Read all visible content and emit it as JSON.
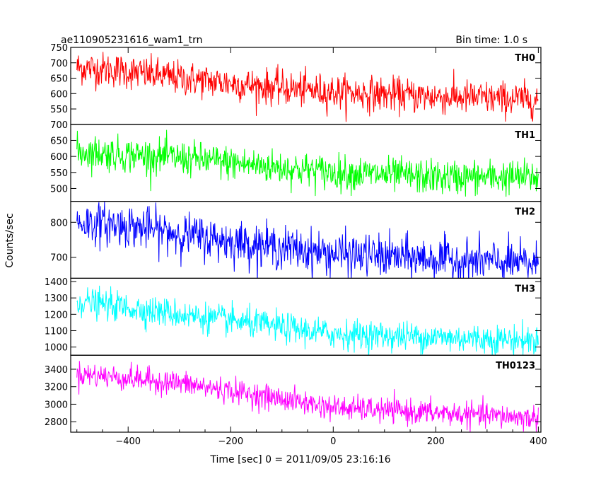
{
  "header": {
    "title": "ae110905231616_wam1_trn",
    "bin_time": "Bin time: 1.0 s"
  },
  "chart_data": {
    "type": "line",
    "xlabel": "Time [sec] 0 = 2011/09/05 23:16:16",
    "ylabel": "Counts/sec",
    "xlim": [
      -512,
      405
    ],
    "x_ticks": [
      -400,
      -200,
      0,
      200,
      400
    ],
    "x_tick_labels": [
      "−400",
      "−200",
      "0",
      "200",
      "400"
    ],
    "x_range": [
      -500,
      400
    ],
    "bin": 1.0,
    "panels": [
      {
        "name": "TH0",
        "color": "#ff0000",
        "ylim": [
          500,
          750
        ],
        "ticks": [
          550,
          600,
          650,
          700,
          750
        ],
        "trend": {
          "x": [
            -500,
            -420,
            -300,
            -150,
            0,
            200,
            400
          ],
          "y": [
            685,
            675,
            650,
            625,
            605,
            590,
            580
          ]
        },
        "noise": 28
      },
      {
        "name": "TH1",
        "color": "#00ff00",
        "ylim": [
          460,
          700
        ],
        "ticks": [
          500,
          550,
          600,
          650,
          700
        ],
        "trend": {
          "x": [
            -500,
            -300,
            -100,
            0,
            200,
            400
          ],
          "y": [
            615,
            595,
            565,
            550,
            535,
            535
          ]
        },
        "noise": 27
      },
      {
        "name": "TH2",
        "color": "#0000ff",
        "ylim": [
          640,
          860
        ],
        "ticks": [
          700,
          800
        ],
        "trend": {
          "x": [
            -500,
            -400,
            -200,
            0,
            200,
            400
          ],
          "y": [
            800,
            790,
            745,
            710,
            695,
            680
          ]
        },
        "noise": 30
      },
      {
        "name": "TH3",
        "color": "#00ffff",
        "ylim": [
          950,
          1420
        ],
        "ticks": [
          1000,
          1100,
          1200,
          1300,
          1400
        ],
        "trend": {
          "x": [
            -500,
            -300,
            -100,
            0,
            200,
            400
          ],
          "y": [
            1280,
            1200,
            1120,
            1080,
            1060,
            1040
          ]
        },
        "noise": 45
      },
      {
        "name": "TH0123",
        "color": "#ff00ff",
        "ylim": [
          2680,
          3560
        ],
        "ticks": [
          2800,
          3000,
          3200,
          3400
        ],
        "trend": {
          "x": [
            -500,
            -300,
            -100,
            0,
            200,
            400
          ],
          "y": [
            3350,
            3240,
            3060,
            2960,
            2900,
            2840
          ]
        },
        "noise": 70
      }
    ]
  }
}
